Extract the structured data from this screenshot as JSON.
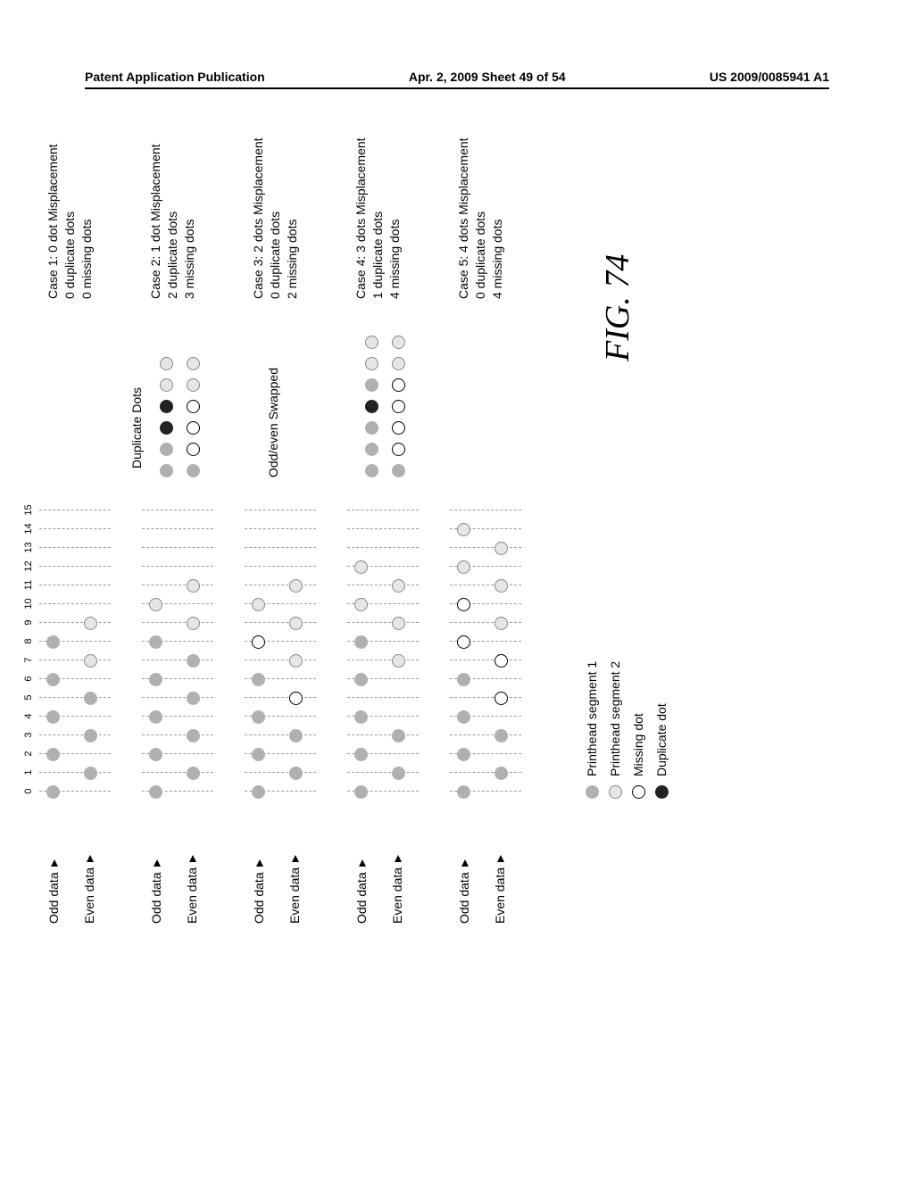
{
  "header": {
    "left": "Patent Application Publication",
    "center": "Apr. 2, 2009  Sheet 49 of 54",
    "right": "US 2009/0085941 A1"
  },
  "axis": [
    "0",
    "1",
    "2",
    "3",
    "4",
    "5",
    "6",
    "7",
    "8",
    "9",
    "10",
    "11",
    "12",
    "13",
    "14",
    "15"
  ],
  "row_labels": {
    "odd": "Odd data",
    "even": "Even data"
  },
  "annotations": {
    "duplicate": "Duplicate Dots",
    "swapped": "Odd/even Swapped"
  },
  "cases": [
    {
      "odd": [
        "seg1",
        "",
        "seg1",
        "",
        "seg1",
        "",
        "seg1",
        "",
        "seg1",
        "",
        "",
        "",
        "",
        "",
        "",
        ""
      ],
      "even": [
        "",
        "seg1",
        "",
        "seg1",
        "",
        "seg1",
        "",
        "seg2",
        "",
        "seg2",
        "",
        "",
        "",
        "",
        "",
        ""
      ],
      "desc": [
        "Case 1: 0 dot Misplacement",
        "0 duplicate dots",
        "0 missing dots"
      ],
      "mid_odd": [],
      "mid_even": []
    },
    {
      "odd": [
        "seg1",
        "",
        "seg1",
        "",
        "seg1",
        "",
        "seg1",
        "",
        "seg1",
        "",
        "seg2",
        "",
        "",
        "",
        "",
        ""
      ],
      "even": [
        "",
        "seg1",
        "",
        "seg1",
        "",
        "seg1",
        "",
        "seg1",
        "",
        "seg2",
        "",
        "seg2",
        "",
        "",
        "",
        ""
      ],
      "desc": [
        "Case 2: 1 dot Misplacement",
        "2 duplicate dots",
        "3 missing dots"
      ],
      "mid_odd": [
        "seg1",
        "seg1",
        "dup",
        "dup",
        "seg2",
        "seg2"
      ],
      "mid_even": [
        "seg1",
        "missing",
        "missing",
        "missing",
        "seg2",
        "seg2"
      ],
      "mid_label": "duplicate"
    },
    {
      "odd": [
        "seg1",
        "",
        "seg1",
        "",
        "seg1",
        "",
        "seg1",
        "",
        "missing",
        "",
        "seg2",
        "",
        "",
        "",
        "",
        ""
      ],
      "even": [
        "",
        "seg1",
        "",
        "seg1",
        "",
        "missing",
        "",
        "seg2",
        "",
        "seg2",
        "",
        "seg2",
        "",
        "",
        "",
        ""
      ],
      "desc": [
        "Case 3: 2 dots Misplacement",
        "0 duplicate dots",
        "2 missing dots"
      ],
      "mid_odd": [],
      "mid_even": [],
      "mid_label": "swapped"
    },
    {
      "odd": [
        "seg1",
        "",
        "seg1",
        "",
        "seg1",
        "",
        "seg1",
        "",
        "seg1",
        "",
        "seg2",
        "",
        "seg2",
        "",
        "",
        ""
      ],
      "even": [
        "",
        "seg1",
        "",
        "seg1",
        "",
        "",
        "",
        "seg2",
        "",
        "seg2",
        "",
        "seg2",
        "",
        "",
        "",
        ""
      ],
      "desc": [
        "Case 4: 3 dots Misplacement",
        "1 duplicate dots",
        "4 missing dots"
      ],
      "mid_odd": [
        "seg1",
        "seg1",
        "seg1",
        "dup",
        "seg1",
        "seg2",
        "seg2"
      ],
      "mid_even": [
        "seg1",
        "missing",
        "missing",
        "missing",
        "missing",
        "seg2",
        "seg2"
      ]
    },
    {
      "odd": [
        "seg1",
        "",
        "seg1",
        "",
        "seg1",
        "",
        "seg1",
        "",
        "missing",
        "",
        "missing",
        "",
        "seg2",
        "",
        "seg2",
        ""
      ],
      "even": [
        "",
        "seg1",
        "",
        "seg1",
        "",
        "missing",
        "",
        "missing",
        "",
        "seg2",
        "",
        "seg2",
        "",
        "seg2",
        "",
        ""
      ],
      "desc": [
        "Case 5: 4 dots Misplacement",
        "0 duplicate dots",
        "4 missing dots"
      ],
      "mid_odd": [],
      "mid_even": []
    }
  ],
  "legend": {
    "seg1": "Printhead segment 1",
    "seg2": "Printhead segment 2",
    "missing": "Missing dot",
    "dup": "Duplicate dot"
  },
  "figure_caption": "FIG. 74",
  "layout": {
    "dot_spacing": 21,
    "mid_dot_spacing": 24,
    "colors": {
      "seg1": "#b0b0b0",
      "seg2": "#e6e6e6",
      "missing": "#ffffff",
      "dup": "#222222"
    }
  }
}
